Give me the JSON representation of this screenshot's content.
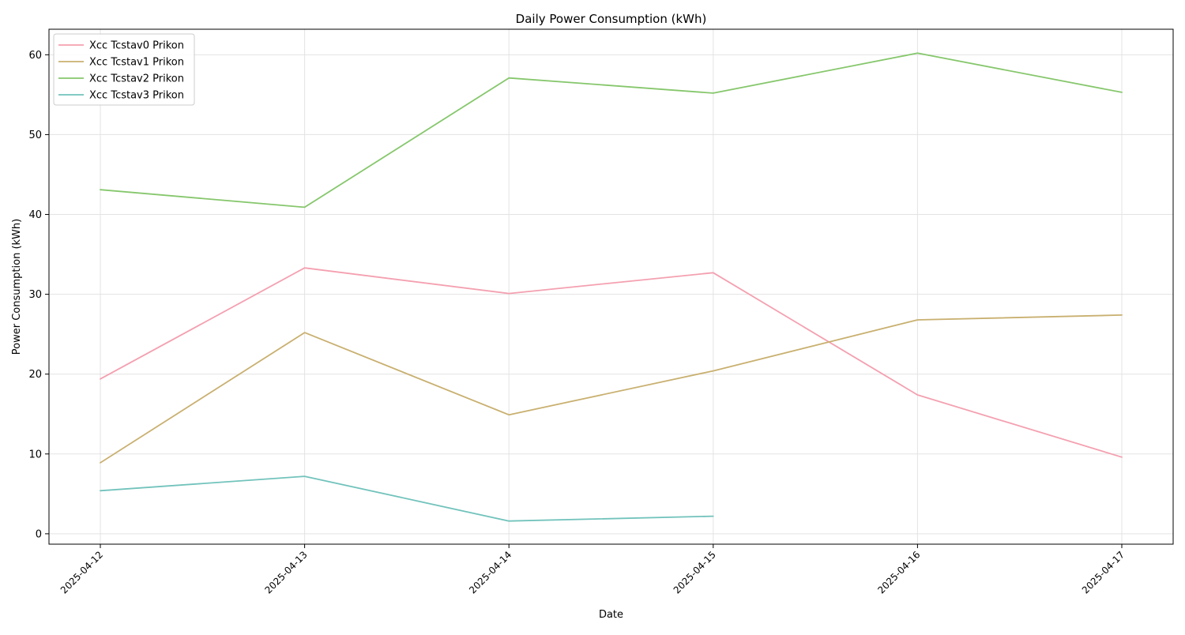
{
  "chart_data": {
    "type": "line",
    "title": "Daily Power Consumption (kWh)",
    "xlabel": "Date",
    "ylabel": "Power Consumption (kWh)",
    "x": [
      "2025-04-12",
      "2025-04-13",
      "2025-04-14",
      "2025-04-15",
      "2025-04-16",
      "2025-04-17"
    ],
    "ylim": [
      -1.3,
      63.2
    ],
    "yticks": [
      0,
      10,
      20,
      30,
      40,
      50,
      60
    ],
    "grid": true,
    "legend_position": "top-left",
    "series": [
      {
        "name": "Xcc Tcstav0 Prikon",
        "color": "#f4a0b0",
        "values": [
          19.4,
          33.3,
          30.1,
          32.7,
          17.4,
          9.6
        ]
      },
      {
        "name": "Xcc Tcstav1 Prikon",
        "color": "#c9b070",
        "values": [
          8.9,
          25.2,
          14.9,
          20.4,
          26.8,
          27.4
        ]
      },
      {
        "name": "Xcc Tcstav2 Prikon",
        "color": "#86c76c",
        "values": [
          43.1,
          40.9,
          57.1,
          55.2,
          60.2,
          55.3
        ]
      },
      {
        "name": "Xcc Tcstav3 Prikon",
        "color": "#72c3bc",
        "values": [
          5.4,
          7.2,
          1.6,
          2.2,
          null,
          null
        ]
      }
    ]
  }
}
